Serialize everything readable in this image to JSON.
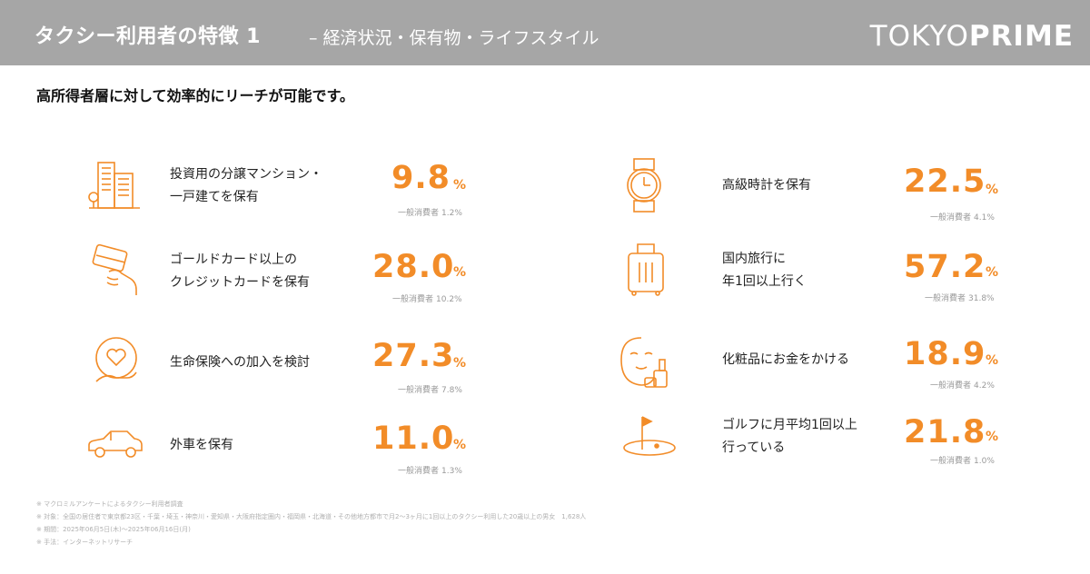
{
  "header": {
    "title": "タクシー利用者の特徴 1",
    "subtitle": "– 経済状況・保有物・ライフスタイル",
    "logo_light": "TOKYO",
    "logo_bold": "PRIME",
    "background_color": "#a6a6a6"
  },
  "lead": "高所得者層に対して効率的にリーチが可能です。",
  "accent_color": "#f28c28",
  "unit": "%",
  "ref_label": "一般消費者",
  "items": [
    {
      "icon": "building-icon",
      "label_lines": [
        "投資用の分譲マンション・",
        "一戸建てを保有"
      ],
      "value": "9.8",
      "ref_value": "1.2%"
    },
    {
      "icon": "credit-card-icon",
      "label_lines": [
        "ゴールドカード以上の",
        "クレジットカードを保有"
      ],
      "value": "28.0",
      "ref_value": "10.2%"
    },
    {
      "icon": "heart-hand-icon",
      "label_lines": [
        "生命保険への加入を検討"
      ],
      "value": "27.3",
      "ref_value": "7.8%"
    },
    {
      "icon": "car-icon",
      "label_lines": [
        "外車を保有"
      ],
      "value": "11.0",
      "ref_value": "1.3%"
    },
    {
      "icon": "watch-icon",
      "label_lines": [
        "高級時計を保有"
      ],
      "value": "22.5",
      "ref_value": "4.1%"
    },
    {
      "icon": "suitcase-icon",
      "label_lines": [
        "国内旅行に",
        "年1回以上行く"
      ],
      "value": "57.2",
      "ref_value": "31.8%"
    },
    {
      "icon": "face-mask-cosmetics-icon",
      "label_lines": [
        "化粧品にお金をかける"
      ],
      "value": "18.9",
      "ref_value": "4.2%"
    },
    {
      "icon": "golf-flag-icon",
      "label_lines": [
        "ゴルフに月平均1回以上",
        "行っている"
      ],
      "value": "21.8",
      "ref_value": "1.0%"
    }
  ],
  "notes": [
    "※ マクロミルアンケートによるタクシー利用者調査",
    "※ 対象：全国の居住者で東京都23区・千葉・埼玉・神奈川・愛知県・大阪府指定圏内・福岡県・北海道・その他地方都市で月2〜3ヶ月に1回以上のタクシー利用した20歳以上の男女　1,628人",
    "※ 期間：2025年06月5日(木)〜2025年06月16日(月)",
    "※ 手法：インターネットリサーチ"
  ]
}
